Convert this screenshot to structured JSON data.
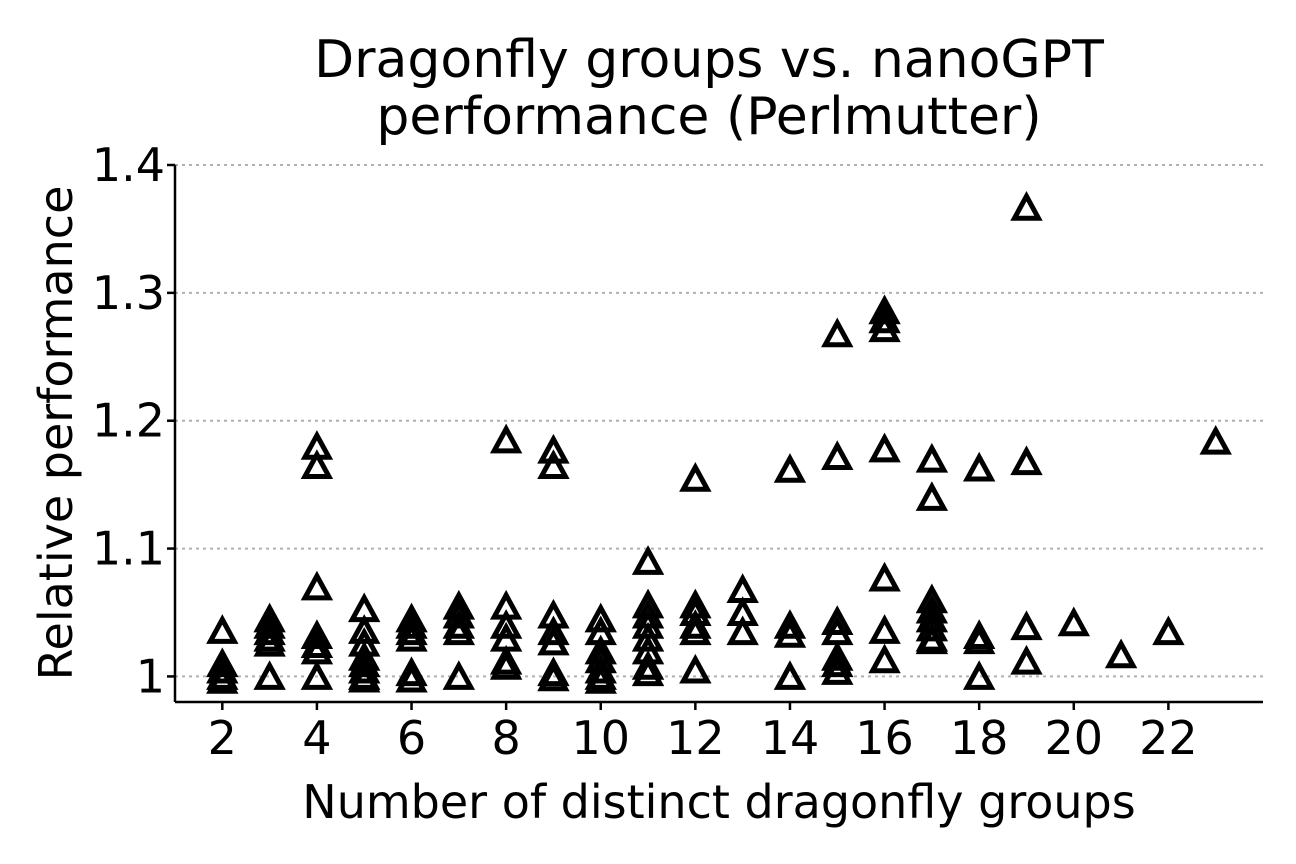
{
  "chart_data": {
    "type": "scatter",
    "title": [
      "Dragonfly groups vs. nanoGPT",
      "performance (Perlmutter)"
    ],
    "xlabel": "Number of distinct dragonfly groups",
    "ylabel": "Relative performance",
    "xlim": [
      1,
      24
    ],
    "ylim": [
      0.98,
      1.4
    ],
    "xticks": [
      2,
      4,
      6,
      8,
      10,
      12,
      14,
      16,
      18,
      20,
      22
    ],
    "xtick_labels": [
      "2",
      "4",
      "6",
      "8",
      "10",
      "12",
      "14",
      "16",
      "18",
      "20",
      "22"
    ],
    "yticks": [
      1.0,
      1.1,
      1.2,
      1.3,
      1.4
    ],
    "ytick_labels": [
      "1",
      "1.1",
      "1.2",
      "1.3",
      "1.4"
    ],
    "grid": "y-dotted",
    "marker": "open-triangle",
    "points": [
      [
        2,
        1.036
      ],
      [
        2,
        1.01
      ],
      [
        2,
        1.005
      ],
      [
        2,
        1.0
      ],
      [
        2,
        0.997
      ],
      [
        3,
        1.045
      ],
      [
        3,
        1.04
      ],
      [
        3,
        1.035
      ],
      [
        3,
        1.03
      ],
      [
        3,
        1.026
      ],
      [
        3,
        1.0
      ],
      [
        4,
        1.18
      ],
      [
        4,
        1.165
      ],
      [
        4,
        1.07
      ],
      [
        4,
        1.032
      ],
      [
        4,
        1.025
      ],
      [
        4,
        1.02
      ],
      [
        4,
        1.0
      ],
      [
        5,
        1.053
      ],
      [
        5,
        1.036
      ],
      [
        5,
        1.026
      ],
      [
        5,
        1.015
      ],
      [
        5,
        1.01
      ],
      [
        5,
        1.005
      ],
      [
        5,
        1.0
      ],
      [
        5,
        0.998
      ],
      [
        6,
        1.045
      ],
      [
        6,
        1.04
      ],
      [
        6,
        1.035
      ],
      [
        6,
        1.03
      ],
      [
        6,
        1.003
      ],
      [
        6,
        0.998
      ],
      [
        7,
        1.055
      ],
      [
        7,
        1.048
      ],
      [
        7,
        1.04
      ],
      [
        7,
        1.035
      ],
      [
        7,
        1.0
      ],
      [
        8,
        1.185
      ],
      [
        8,
        1.055
      ],
      [
        8,
        1.04
      ],
      [
        8,
        1.03
      ],
      [
        8,
        1.012
      ],
      [
        8,
        1.008
      ],
      [
        9,
        1.177
      ],
      [
        9,
        1.165
      ],
      [
        9,
        1.048
      ],
      [
        9,
        1.035
      ],
      [
        9,
        1.027
      ],
      [
        9,
        1.003
      ],
      [
        9,
        0.999
      ],
      [
        10,
        1.045
      ],
      [
        10,
        1.035
      ],
      [
        10,
        1.02
      ],
      [
        10,
        1.013
      ],
      [
        10,
        1.005
      ],
      [
        10,
        1.0
      ],
      [
        10,
        0.997
      ],
      [
        11,
        1.09
      ],
      [
        11,
        1.056
      ],
      [
        11,
        1.048
      ],
      [
        11,
        1.04
      ],
      [
        11,
        1.03
      ],
      [
        11,
        1.02
      ],
      [
        11,
        1.008
      ],
      [
        11,
        1.003
      ],
      [
        12,
        1.155
      ],
      [
        12,
        1.056
      ],
      [
        12,
        1.05
      ],
      [
        12,
        1.04
      ],
      [
        12,
        1.035
      ],
      [
        12,
        1.005
      ],
      [
        13,
        1.068
      ],
      [
        13,
        1.05
      ],
      [
        13,
        1.035
      ],
      [
        14,
        1.162
      ],
      [
        14,
        1.04
      ],
      [
        14,
        1.033
      ],
      [
        14,
        1.0
      ],
      [
        15,
        1.268
      ],
      [
        15,
        1.172
      ],
      [
        15,
        1.043
      ],
      [
        15,
        1.035
      ],
      [
        15,
        1.015
      ],
      [
        15,
        1.01
      ],
      [
        15,
        1.004
      ],
      [
        16,
        1.286
      ],
      [
        16,
        1.279
      ],
      [
        16,
        1.272
      ],
      [
        16,
        1.178
      ],
      [
        16,
        1.077
      ],
      [
        16,
        1.036
      ],
      [
        16,
        1.013
      ],
      [
        17,
        1.17
      ],
      [
        17,
        1.14
      ],
      [
        17,
        1.06
      ],
      [
        17,
        1.052
      ],
      [
        17,
        1.045
      ],
      [
        17,
        1.038
      ],
      [
        17,
        1.03
      ],
      [
        17,
        1.028
      ],
      [
        18,
        1.163
      ],
      [
        18,
        1.032
      ],
      [
        18,
        1.028
      ],
      [
        18,
        1.0
      ],
      [
        19,
        1.367
      ],
      [
        19,
        1.168
      ],
      [
        19,
        1.039
      ],
      [
        19,
        1.012
      ],
      [
        20,
        1.042
      ],
      [
        21,
        1.017
      ],
      [
        22,
        1.035
      ],
      [
        23,
        1.184
      ]
    ]
  }
}
